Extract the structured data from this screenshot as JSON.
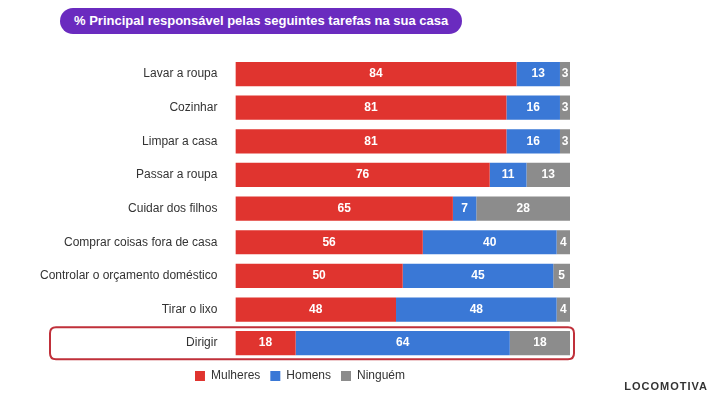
{
  "chart_data": {
    "type": "bar",
    "title": "% Principal responsável pelas seguintes tarefas na sua casa",
    "categories": [
      "Lavar a roupa",
      "Cozinhar",
      "Limpar a casa",
      "Passar a roupa",
      "Cuidar dos filhos",
      "Comprar coisas fora de casa",
      "Controlar o orçamento doméstico",
      "Tirar o lixo",
      "Dirigir"
    ],
    "series": [
      {
        "name": "Mulheres",
        "color": "#e0342f",
        "values": [
          84,
          81,
          81,
          76,
          65,
          56,
          50,
          48,
          18
        ]
      },
      {
        "name": "Homens",
        "color": "#3a78d6",
        "values": [
          13,
          16,
          16,
          11,
          7,
          40,
          45,
          48,
          64
        ]
      },
      {
        "name": "Ninguém",
        "color": "#8c8c8c",
        "values": [
          3,
          3,
          3,
          13,
          28,
          4,
          5,
          4,
          18
        ]
      }
    ],
    "xlim": [
      0,
      100
    ],
    "orientation": "horizontal",
    "stacked": true,
    "data_labels": true,
    "tick_labels": "y",
    "grid": false,
    "legend": "bottom",
    "annotations": [
      "LOCOMOTIVA"
    ]
  }
}
